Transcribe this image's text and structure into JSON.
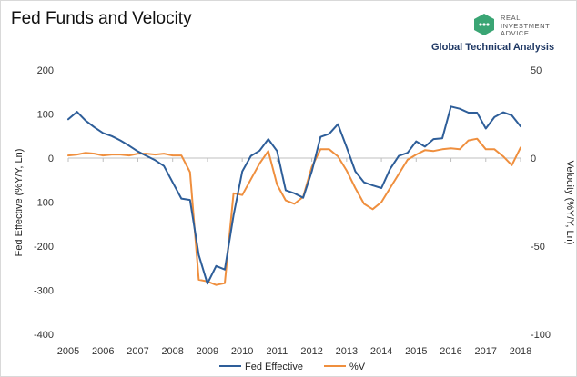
{
  "header": {
    "title": "Fed Funds and Velocity",
    "subtitle": "Global Technical Analysis",
    "logo_lines": [
      "REAL",
      "INVESTMENT",
      "ADVICE"
    ]
  },
  "colors": {
    "fed_effective": "#2e5e99",
    "velocity": "#ef8f3e",
    "logo_green": "#3aa574",
    "axis": "#bfbfbf",
    "subtitle": "#1f3864"
  },
  "chart_data": {
    "type": "line",
    "xlabel": "",
    "ylabel": "Fed Effective (%Y/Y, Ln)",
    "ylabel_right": "Velocity (%Y/Y, Ln)",
    "ylim": [
      -400,
      200
    ],
    "ylim_right": [
      -100,
      50
    ],
    "y_ticks": [
      200,
      100,
      0,
      -100,
      -200,
      -300,
      -400
    ],
    "y_ticks_right": [
      50,
      0,
      -50,
      -100
    ],
    "xlim": [
      2005,
      2018
    ],
    "x_ticks": [
      "2005",
      "2006",
      "2007",
      "2008",
      "2009",
      "2010",
      "2011",
      "2012",
      "2013",
      "2014",
      "2015",
      "2016",
      "2017",
      "2018"
    ],
    "grid": false,
    "legend_position": "bottom",
    "series": [
      {
        "name": "Fed Effective",
        "axis": "left",
        "points": [
          [
            2005.0,
            88
          ],
          [
            2005.25,
            105
          ],
          [
            2005.5,
            85
          ],
          [
            2005.75,
            70
          ],
          [
            2006.0,
            57
          ],
          [
            2006.25,
            50
          ],
          [
            2006.5,
            40
          ],
          [
            2006.75,
            28
          ],
          [
            2007.0,
            15
          ],
          [
            2007.25,
            5
          ],
          [
            2007.5,
            -5
          ],
          [
            2007.75,
            -18
          ],
          [
            2008.0,
            -55
          ],
          [
            2008.25,
            -92
          ],
          [
            2008.5,
            -95
          ],
          [
            2008.75,
            -220
          ],
          [
            2009.0,
            -285
          ],
          [
            2009.25,
            -245
          ],
          [
            2009.5,
            -253
          ],
          [
            2009.75,
            -130
          ],
          [
            2010.0,
            -30
          ],
          [
            2010.25,
            5
          ],
          [
            2010.5,
            17
          ],
          [
            2010.75,
            43
          ],
          [
            2011.0,
            16
          ],
          [
            2011.25,
            -73
          ],
          [
            2011.5,
            -80
          ],
          [
            2011.75,
            -90
          ],
          [
            2012.0,
            -30
          ],
          [
            2012.25,
            48
          ],
          [
            2012.5,
            55
          ],
          [
            2012.75,
            77
          ],
          [
            2013.0,
            25
          ],
          [
            2013.25,
            -30
          ],
          [
            2013.5,
            -55
          ],
          [
            2013.75,
            -62
          ],
          [
            2014.0,
            -68
          ],
          [
            2014.25,
            -25
          ],
          [
            2014.5,
            5
          ],
          [
            2014.75,
            12
          ],
          [
            2015.0,
            38
          ],
          [
            2015.25,
            26
          ],
          [
            2015.5,
            43
          ],
          [
            2015.75,
            45
          ],
          [
            2016.0,
            117
          ],
          [
            2016.25,
            112
          ],
          [
            2016.5,
            103
          ],
          [
            2016.75,
            103
          ],
          [
            2017.0,
            67
          ],
          [
            2017.25,
            93
          ],
          [
            2017.5,
            104
          ],
          [
            2017.75,
            97
          ],
          [
            2018.0,
            72
          ]
        ]
      },
      {
        "name": "%V",
        "axis": "right",
        "points": [
          [
            2005.0,
            1.5
          ],
          [
            2005.25,
            2
          ],
          [
            2005.5,
            3
          ],
          [
            2005.75,
            2.5
          ],
          [
            2006.0,
            1.5
          ],
          [
            2006.25,
            2
          ],
          [
            2006.5,
            2
          ],
          [
            2006.75,
            1.5
          ],
          [
            2007.0,
            2.5
          ],
          [
            2007.25,
            2.5
          ],
          [
            2007.5,
            2
          ],
          [
            2007.75,
            2.5
          ],
          [
            2008.0,
            1.5
          ],
          [
            2008.25,
            1.5
          ],
          [
            2008.5,
            -8
          ],
          [
            2008.75,
            -69
          ],
          [
            2009.0,
            -70
          ],
          [
            2009.25,
            -72
          ],
          [
            2009.5,
            -71
          ],
          [
            2009.75,
            -20
          ],
          [
            2010.0,
            -21
          ],
          [
            2010.25,
            -12
          ],
          [
            2010.5,
            -3
          ],
          [
            2010.75,
            4
          ],
          [
            2011.0,
            -15
          ],
          [
            2011.25,
            -24
          ],
          [
            2011.5,
            -26
          ],
          [
            2011.75,
            -22
          ],
          [
            2012.0,
            -5
          ],
          [
            2012.25,
            5
          ],
          [
            2012.5,
            5
          ],
          [
            2012.75,
            1
          ],
          [
            2013.0,
            -7
          ],
          [
            2013.25,
            -17
          ],
          [
            2013.5,
            -26
          ],
          [
            2013.75,
            -29
          ],
          [
            2014.0,
            -25
          ],
          [
            2014.25,
            -17
          ],
          [
            2014.5,
            -9
          ],
          [
            2014.75,
            -1
          ],
          [
            2015.0,
            2
          ],
          [
            2015.25,
            4.5
          ],
          [
            2015.5,
            4
          ],
          [
            2015.75,
            5
          ],
          [
            2016.0,
            5.5
          ],
          [
            2016.25,
            5
          ],
          [
            2016.5,
            10
          ],
          [
            2016.75,
            11
          ],
          [
            2017.0,
            5
          ],
          [
            2017.25,
            5
          ],
          [
            2017.5,
            1
          ],
          [
            2017.75,
            -4
          ],
          [
            2018.0,
            6
          ]
        ]
      }
    ]
  }
}
